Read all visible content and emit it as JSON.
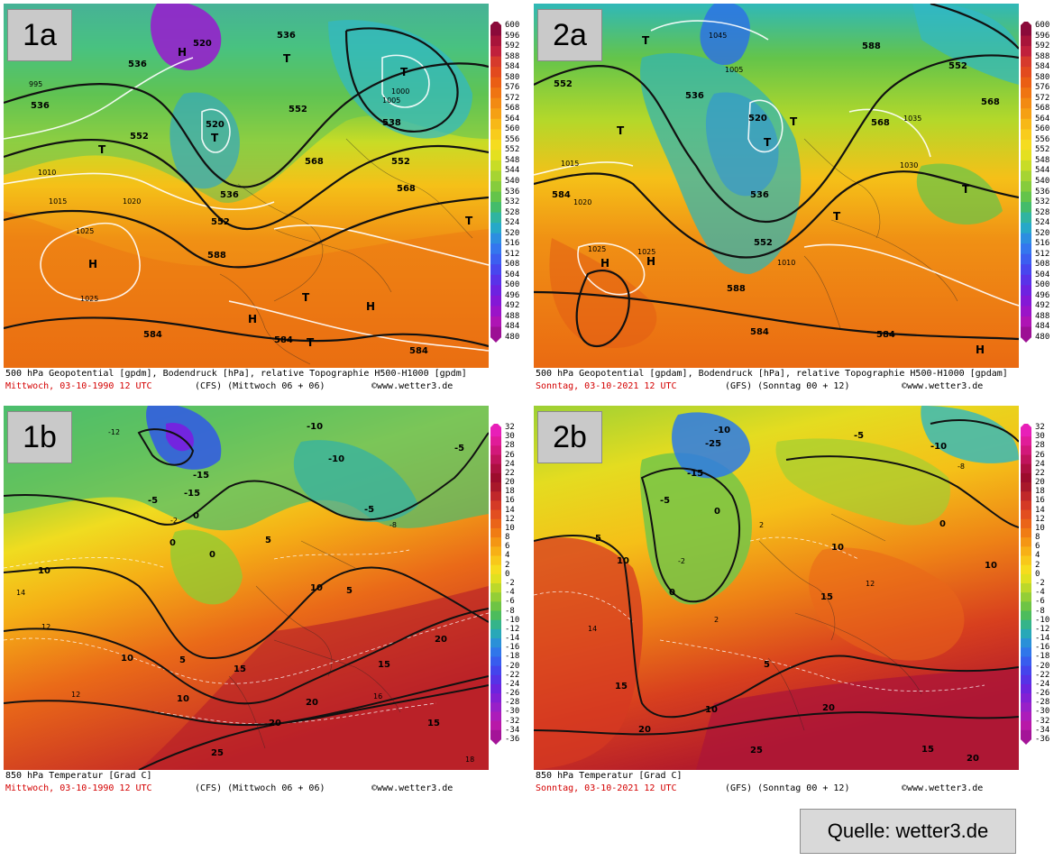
{
  "panels": [
    {
      "label": "1a",
      "caption_title": "500 hPa Geopotential [gpdm], Bodendruck [hPa], relative Topographie H500-H1000 [gpdm]",
      "caption_date": "Mittwoch, 03-10-1990  12 UTC",
      "caption_model": "(CFS)  (Mittwoch 06 + 06)",
      "caption_source": "©www.wetter3.de",
      "scale": "gpdm",
      "map_labels": [
        {
          "text": "536"
        },
        {
          "text": "536"
        },
        {
          "text": "536"
        },
        {
          "text": "536"
        },
        {
          "text": "538"
        },
        {
          "text": "552"
        },
        {
          "text": "552"
        },
        {
          "text": "552"
        },
        {
          "text": "552"
        },
        {
          "text": "568"
        },
        {
          "text": "568"
        },
        {
          "text": "588"
        },
        {
          "text": "584"
        },
        {
          "text": "584"
        },
        {
          "text": "584"
        },
        {
          "text": "520"
        },
        {
          "text": "520"
        },
        {
          "text": "1025"
        },
        {
          "text": "1025"
        },
        {
          "text": "1015"
        },
        {
          "text": "1010"
        },
        {
          "text": "1020"
        },
        {
          "text": "1005"
        },
        {
          "text": "1000"
        },
        {
          "text": "995"
        },
        {
          "text": "H"
        },
        {
          "text": "H"
        },
        {
          "text": "H"
        },
        {
          "text": "H"
        },
        {
          "text": "T"
        },
        {
          "text": "T"
        },
        {
          "text": "T"
        },
        {
          "text": "T"
        },
        {
          "text": "T"
        },
        {
          "text": "T"
        },
        {
          "text": "T"
        }
      ]
    },
    {
      "label": "2a",
      "caption_title": "500 hPa Geopotential [gpdam], Bodendruck [hPa], relative Topographie H500-H1000 [gpdam]",
      "caption_date": "Sonntag, 03-10-2021  12 UTC",
      "caption_model": "(GFS)  (Sonntag 00 + 12)",
      "caption_source": "©www.wetter3.de",
      "scale": "gpdm",
      "map_labels": [
        {
          "text": "536"
        },
        {
          "text": "536"
        },
        {
          "text": "552"
        },
        {
          "text": "552"
        },
        {
          "text": "552"
        },
        {
          "text": "568"
        },
        {
          "text": "568"
        },
        {
          "text": "588"
        },
        {
          "text": "588"
        },
        {
          "text": "584"
        },
        {
          "text": "584"
        },
        {
          "text": "584"
        },
        {
          "text": "520"
        },
        {
          "text": "1025"
        },
        {
          "text": "1025"
        },
        {
          "text": "1020"
        },
        {
          "text": "1015"
        },
        {
          "text": "1010"
        },
        {
          "text": "1030"
        },
        {
          "text": "1035"
        },
        {
          "text": "1005"
        },
        {
          "text": "1045"
        },
        {
          "text": "H"
        },
        {
          "text": "H"
        },
        {
          "text": "H"
        },
        {
          "text": "T"
        },
        {
          "text": "T"
        },
        {
          "text": "T"
        },
        {
          "text": "T"
        },
        {
          "text": "T"
        },
        {
          "text": "T"
        }
      ]
    },
    {
      "label": "1b",
      "caption_title": "850 hPa Temperatur [Grad C]",
      "caption_date": "Mittwoch, 03-10-1990  12 UTC",
      "caption_model": "(CFS)  (Mittwoch 06 + 06)",
      "caption_source": "©www.wetter3.de",
      "scale": "temp",
      "map_labels": [
        {
          "text": "-10"
        },
        {
          "text": "-10"
        },
        {
          "text": "-15"
        },
        {
          "text": "-15"
        },
        {
          "text": "-5"
        },
        {
          "text": "-5"
        },
        {
          "text": "-5"
        },
        {
          "text": "0"
        },
        {
          "text": "0"
        },
        {
          "text": "0"
        },
        {
          "text": "5"
        },
        {
          "text": "5"
        },
        {
          "text": "5"
        },
        {
          "text": "10"
        },
        {
          "text": "10"
        },
        {
          "text": "10"
        },
        {
          "text": "10"
        },
        {
          "text": "15"
        },
        {
          "text": "15"
        },
        {
          "text": "15"
        },
        {
          "text": "20"
        },
        {
          "text": "20"
        },
        {
          "text": "20"
        },
        {
          "text": "25"
        },
        {
          "text": "14"
        },
        {
          "text": "12"
        },
        {
          "text": "12"
        },
        {
          "text": "16"
        },
        {
          "text": "18"
        },
        {
          "text": "-2"
        },
        {
          "text": "-8"
        },
        {
          "text": "-12"
        }
      ]
    },
    {
      "label": "2b",
      "caption_title": "850 hPa Temperatur [Grad C]",
      "caption_date": "Sonntag, 03-10-2021  12 UTC",
      "caption_model": "(GFS)  (Sonntag 00 + 12)",
      "caption_source": "©www.wetter3.de",
      "scale": "temp",
      "map_labels": [
        {
          "text": "-10"
        },
        {
          "text": "-10"
        },
        {
          "text": "-15"
        },
        {
          "text": "-25"
        },
        {
          "text": "-5"
        },
        {
          "text": "-5"
        },
        {
          "text": "0"
        },
        {
          "text": "0"
        },
        {
          "text": "0"
        },
        {
          "text": "5"
        },
        {
          "text": "5"
        },
        {
          "text": "10"
        },
        {
          "text": "10"
        },
        {
          "text": "10"
        },
        {
          "text": "10"
        },
        {
          "text": "15"
        },
        {
          "text": "15"
        },
        {
          "text": "15"
        },
        {
          "text": "20"
        },
        {
          "text": "20"
        },
        {
          "text": "20"
        },
        {
          "text": "25"
        },
        {
          "text": "2"
        },
        {
          "text": "2"
        },
        {
          "text": "12"
        },
        {
          "text": "14"
        },
        {
          "text": "-2"
        },
        {
          "text": "-8"
        }
      ]
    }
  ],
  "colorbar_gpdm": {
    "ticks": [
      "600",
      "596",
      "592",
      "588",
      "584",
      "580",
      "576",
      "572",
      "568",
      "564",
      "560",
      "556",
      "552",
      "548",
      "544",
      "540",
      "536",
      "532",
      "528",
      "524",
      "520",
      "516",
      "512",
      "508",
      "504",
      "500",
      "496",
      "492",
      "488",
      "484",
      "480"
    ],
    "colors": [
      "#8b0a3a",
      "#a8143a",
      "#c0203c",
      "#d63a2c",
      "#e24a1e",
      "#ea5e14",
      "#ef7412",
      "#f28a12",
      "#f5a014",
      "#f7b818",
      "#f8cc1c",
      "#f5dc20",
      "#e4e020",
      "#c8dc26",
      "#a6d432",
      "#86cc3c",
      "#64c44a",
      "#44bc6a",
      "#30b4a0",
      "#26a8c8",
      "#2c8ee0",
      "#3476ee",
      "#3c5ef0",
      "#4846ee",
      "#5a32e8",
      "#6e22e0",
      "#8418d6",
      "#9a14c8",
      "#ae14b4",
      "#9c1094"
    ]
  },
  "colorbar_temp": {
    "ticks": [
      "32",
      "30",
      "28",
      "26",
      "24",
      "22",
      "20",
      "18",
      "16",
      "14",
      "12",
      "10",
      "8",
      "6",
      "4",
      "2",
      "0",
      "-2",
      "-4",
      "-6",
      "-8",
      "-10",
      "-12",
      "-14",
      "-16",
      "-18",
      "-20",
      "-22",
      "-24",
      "-26",
      "-28",
      "-30",
      "-32",
      "-34",
      "-36"
    ],
    "colors": [
      "#e81fb8",
      "#e01c98",
      "#d2187a",
      "#c0145c",
      "#ac1040",
      "#9c0c2c",
      "#a8182a",
      "#c0282a",
      "#d43a26",
      "#e24e20",
      "#ea6418",
      "#f07c14",
      "#f49614",
      "#f7b016",
      "#f8c81a",
      "#f6dc1e",
      "#e0e020",
      "#bcd82a",
      "#94ce36",
      "#6ec444",
      "#4cbc5c",
      "#34b48a",
      "#28a8b8",
      "#2a90d8",
      "#3076ea",
      "#385cee",
      "#4444ec",
      "#5632e6",
      "#6c24de",
      "#8220d4",
      "#9820c8",
      "#ac1cba",
      "#b818a8",
      "#a41498"
    ]
  },
  "colors": {
    "label_box": "#c9c9c9",
    "caption_date": "#d40000",
    "contour": "#111111",
    "isobar": "#ffffff"
  },
  "footer": {
    "source": "Quelle: wetter3.de"
  }
}
